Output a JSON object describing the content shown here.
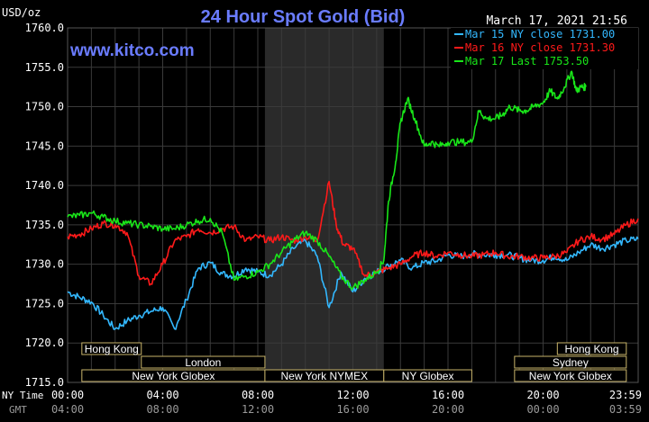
{
  "header": {
    "unit": "USD/oz",
    "title": "24 Hour Spot Gold (Bid)",
    "timestamp": "March 17, 2021 21:56",
    "watermark": "www.kitco.com"
  },
  "axis_labels": {
    "ny_time": "NY Time",
    "gmt": "GMT"
  },
  "colors": {
    "background": "#000000",
    "grid": "#3a3a3a",
    "shade": "#2a2a2a",
    "title": "#6a7cff",
    "axis_text": "#ffffff",
    "gmt_text": "#9a9a9a",
    "session_border": "#c8b46a",
    "session_text": "#ffffff",
    "mar15": "#33b8ff",
    "mar16": "#ff1a1a",
    "mar17": "#19e619"
  },
  "sessions": [
    {
      "label": "Hong Kong",
      "row": 0,
      "start": 0.6,
      "end": 3.1
    },
    {
      "label": "London",
      "row": 1,
      "start": 3.1,
      "end": 8.3
    },
    {
      "label": "New York Globex",
      "row": 2,
      "start": 0.6,
      "end": 8.3
    },
    {
      "label": "New York NYMEX",
      "row": 2,
      "start": 8.3,
      "end": 13.3
    },
    {
      "label": "NY Globex",
      "row": 2,
      "start": 13.3,
      "end": 17.0
    },
    {
      "label": "Hong Kong",
      "row": 0,
      "start": 20.6,
      "end": 23.5
    },
    {
      "label": "Sydney",
      "row": 1,
      "start": 18.8,
      "end": 23.5
    },
    {
      "label": "New York Globex",
      "row": 2,
      "start": 18.8,
      "end": 23.5
    }
  ],
  "chart_data": {
    "type": "line",
    "ylim": [
      1715,
      1760
    ],
    "xlim": [
      0,
      24
    ],
    "y_ticks": [
      "1715.0",
      "1720.0",
      "1725.0",
      "1730.0",
      "1735.0",
      "1740.0",
      "1745.0",
      "1750.0",
      "1755.0",
      "1760.0"
    ],
    "x_ticks_ny": [
      "00:00",
      "04:00",
      "08:00",
      "12:00",
      "16:00",
      "20:00",
      "23:59"
    ],
    "x_ticks_gmt": [
      "04:00",
      "08:00",
      "12:00",
      "16:00",
      "20:00",
      "00:00",
      "03:59"
    ],
    "grid": true,
    "shaded_range": [
      8.3,
      13.3
    ],
    "legend_position": "top-right",
    "series": [
      {
        "name": "Mar 15 NY close 1731.00",
        "color": "#33b8ff",
        "x": [
          0,
          0.5,
          1.0,
          1.5,
          2.0,
          2.5,
          3.0,
          3.5,
          4.0,
          4.5,
          5.0,
          5.5,
          6.0,
          6.5,
          7.0,
          7.5,
          8.0,
          8.5,
          9.0,
          9.5,
          10.0,
          10.5,
          11.0,
          11.5,
          12.0,
          12.5,
          13.0,
          13.5,
          14.0,
          14.5,
          15.0,
          15.5,
          16.0,
          16.5,
          17.0,
          17.5,
          18.0,
          18.5,
          19.0,
          19.5,
          20.0,
          20.5,
          21.0,
          21.5,
          22.0,
          22.5,
          23.0,
          23.5,
          24.0
        ],
        "values": [
          1726.5,
          1725.8,
          1725.2,
          1723.5,
          1721.8,
          1722.8,
          1723.5,
          1724.0,
          1724.5,
          1721.8,
          1725.5,
          1729.5,
          1730.2,
          1728.8,
          1728.5,
          1729.5,
          1729.0,
          1728.6,
          1730.0,
          1732.0,
          1733.0,
          1731.0,
          1724.5,
          1729.0,
          1726.5,
          1728.2,
          1729.0,
          1729.8,
          1730.5,
          1729.5,
          1730.2,
          1730.4,
          1731.2,
          1731.0,
          1731.3,
          1731.2,
          1731.2,
          1731.2,
          1730.8,
          1730.5,
          1730.5,
          1731.0,
          1730.5,
          1731.5,
          1732.5,
          1732.0,
          1732.5,
          1733.0,
          1733.2
        ]
      },
      {
        "name": "Mar 16 NY close 1731.30",
        "color": "#ff1a1a",
        "x": [
          0,
          0.5,
          1.0,
          1.5,
          2.0,
          2.5,
          3.0,
          3.5,
          4.0,
          4.5,
          5.0,
          5.5,
          6.0,
          6.5,
          7.0,
          7.5,
          8.0,
          8.5,
          9.0,
          9.5,
          10.0,
          10.5,
          11.0,
          11.3,
          11.6,
          12.0,
          12.5,
          13.0,
          13.5,
          14.0,
          14.5,
          15.0,
          15.5,
          16.0,
          16.5,
          17.0,
          17.5,
          18.0,
          18.5,
          19.0,
          19.5,
          20.0,
          20.5,
          21.0,
          21.5,
          22.0,
          22.5,
          23.0,
          23.5,
          24.0
        ],
        "values": [
          1733.5,
          1733.8,
          1734.5,
          1735.2,
          1735.0,
          1734.0,
          1728.5,
          1727.5,
          1730.0,
          1733.0,
          1733.5,
          1734.5,
          1734.0,
          1734.5,
          1734.8,
          1733.0,
          1733.5,
          1733.0,
          1733.5,
          1733.0,
          1733.5,
          1733.0,
          1740.5,
          1735.0,
          1732.5,
          1732.0,
          1728.5,
          1729.0,
          1729.5,
          1730.0,
          1731.0,
          1731.5,
          1731.0,
          1731.5,
          1731.2,
          1731.0,
          1731.2,
          1731.5,
          1731.0,
          1731.0,
          1730.8,
          1730.8,
          1731.0,
          1731.5,
          1733.0,
          1733.5,
          1733.2,
          1733.8,
          1735.0,
          1735.8
        ]
      },
      {
        "name": "Mar 17 Last 1753.50",
        "color": "#19e619",
        "x": [
          0,
          0.5,
          1.0,
          1.5,
          2.0,
          2.5,
          3.0,
          3.5,
          4.0,
          4.5,
          5.0,
          5.5,
          6.0,
          6.5,
          7.0,
          7.5,
          8.0,
          8.5,
          9.0,
          9.5,
          10.0,
          10.5,
          11.0,
          11.5,
          12.0,
          12.5,
          13.0,
          13.3,
          13.5,
          13.8,
          14.0,
          14.3,
          14.6,
          15.0,
          15.3,
          15.6,
          16.0,
          16.5,
          17.0,
          17.3,
          17.6,
          18.0,
          18.3,
          18.6,
          19.0,
          19.3,
          19.6,
          20.0,
          20.3,
          20.6,
          20.9,
          21.2,
          21.4,
          21.6,
          21.8
        ],
        "values": [
          1736.0,
          1736.2,
          1736.5,
          1736.0,
          1735.5,
          1735.2,
          1735.0,
          1734.8,
          1734.5,
          1734.5,
          1735.0,
          1735.5,
          1735.8,
          1734.0,
          1728.0,
          1728.5,
          1729.0,
          1730.0,
          1731.5,
          1733.0,
          1734.0,
          1733.0,
          1731.0,
          1728.5,
          1727.0,
          1728.0,
          1729.0,
          1730.5,
          1738.0,
          1743.0,
          1748.0,
          1751.0,
          1748.5,
          1745.0,
          1745.5,
          1745.0,
          1745.5,
          1745.5,
          1745.5,
          1749.5,
          1748.5,
          1748.5,
          1749.0,
          1750.0,
          1749.5,
          1749.5,
          1750.0,
          1750.5,
          1752.0,
          1751.0,
          1752.5,
          1754.5,
          1752.0,
          1752.5,
          1752.5
        ]
      }
    ]
  }
}
